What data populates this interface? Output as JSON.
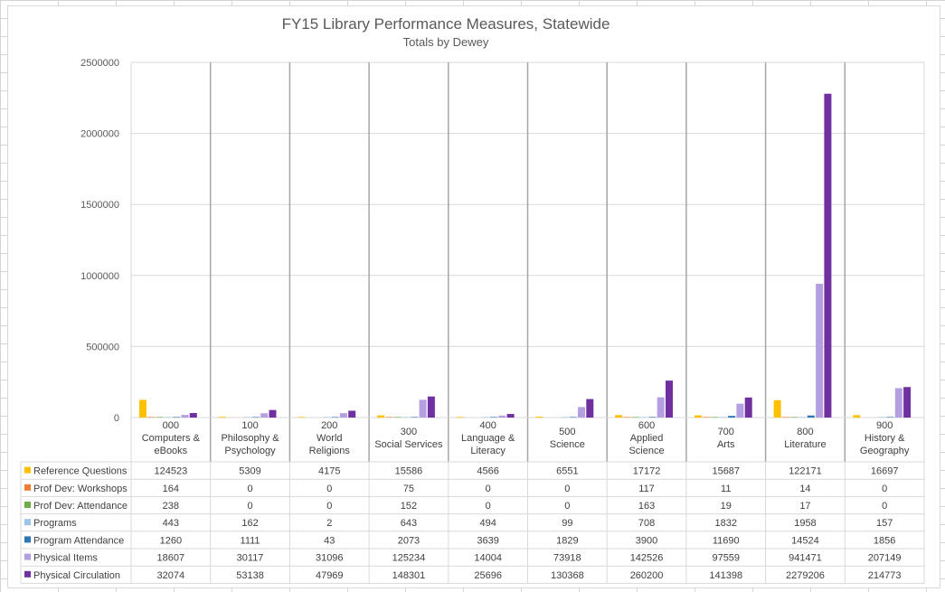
{
  "chart_data": {
    "type": "bar",
    "title": "FY15 Library Performance Measures, Statewide",
    "subtitle": "Totals by Dewey",
    "xlabel": "",
    "ylabel": "",
    "ylim": [
      0,
      2500000
    ],
    "yticks": [
      "0",
      "500000",
      "1000000",
      "1500000",
      "2000000",
      "2500000"
    ],
    "grid": true,
    "legend": "data-table-left",
    "categories": [
      [
        "000",
        "Computers &",
        "eBooks"
      ],
      [
        "100",
        "Philosophy &",
        "Psychology"
      ],
      [
        "200",
        "World",
        "Religions"
      ],
      [
        "300",
        "Social Services"
      ],
      [
        "400",
        "Language &",
        "Literacy"
      ],
      [
        "500",
        "Science"
      ],
      [
        "600",
        "Applied",
        "Science"
      ],
      [
        "700",
        "Arts"
      ],
      [
        "800",
        "Literature"
      ],
      [
        "900",
        "History &",
        "Geography"
      ]
    ],
    "series": [
      {
        "name": "Reference Questions",
        "color": "#ffc000",
        "values": [
          124523,
          5309,
          4175,
          15586,
          4566,
          6551,
          17172,
          15687,
          122171,
          16697
        ]
      },
      {
        "name": "Prof Dev: Workshops",
        "color": "#ed7d31",
        "values": [
          164,
          0,
          0,
          75,
          0,
          0,
          117,
          11,
          14,
          0
        ]
      },
      {
        "name": "Prof Dev: Attendance",
        "color": "#70ad47",
        "values": [
          238,
          0,
          0,
          152,
          0,
          0,
          163,
          19,
          17,
          0
        ]
      },
      {
        "name": "Programs",
        "color": "#9dc3e6",
        "values": [
          443,
          162,
          2,
          643,
          494,
          99,
          708,
          1832,
          1958,
          157
        ]
      },
      {
        "name": "Program Attendance",
        "color": "#2e75b6",
        "values": [
          1260,
          1111,
          43,
          2073,
          3639,
          1829,
          3900,
          11690,
          14524,
          1856
        ]
      },
      {
        "name": "Physical Items",
        "color": "#b4a0e0",
        "values": [
          18607,
          30117,
          31096,
          125234,
          14004,
          73918,
          142526,
          97559,
          941471,
          207149
        ]
      },
      {
        "name": "Physical Circulation",
        "color": "#7030a0",
        "values": [
          32074,
          53138,
          47969,
          148301,
          25696,
          130368,
          260200,
          141398,
          2279206,
          214773
        ]
      }
    ]
  }
}
